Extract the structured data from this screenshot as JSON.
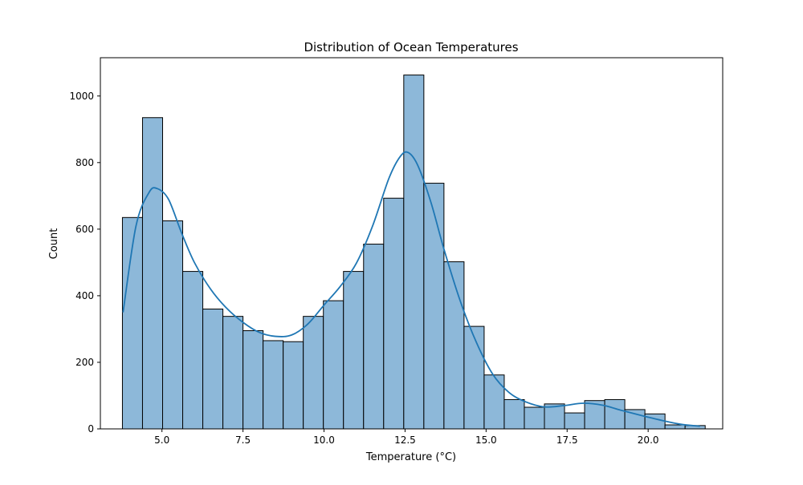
{
  "chart_data": {
    "type": "bar",
    "title": "Distribution of Ocean Temperatures",
    "xlabel": "Temperature (°C)",
    "ylabel": "Count",
    "xlim": [
      3.1,
      22.3
    ],
    "ylim": [
      0,
      1115
    ],
    "x_ticks": [
      5.0,
      7.5,
      10.0,
      12.5,
      15.0,
      17.5,
      20.0
    ],
    "x_tick_labels": [
      "5.0",
      "7.5",
      "10.0",
      "12.5",
      "15.0",
      "17.5",
      "20.0"
    ],
    "y_ticks": [
      0,
      200,
      400,
      600,
      800,
      1000
    ],
    "y_tick_labels": [
      "0",
      "200",
      "400",
      "600",
      "800",
      "1000"
    ],
    "bin_edges": [
      3.78,
      4.4,
      5.02,
      5.64,
      6.26,
      6.88,
      7.5,
      8.12,
      8.74,
      9.36,
      9.98,
      10.6,
      11.22,
      11.84,
      12.46,
      13.08,
      13.7,
      14.32,
      14.94,
      15.56,
      16.18,
      16.8,
      17.42,
      18.04,
      18.66,
      19.28,
      19.9,
      20.52,
      21.14,
      21.76
    ],
    "counts": [
      635,
      935,
      625,
      473,
      360,
      338,
      295,
      265,
      262,
      338,
      385,
      473,
      555,
      693,
      1063,
      738,
      502,
      308,
      162,
      88,
      65,
      75,
      48,
      85,
      88,
      58,
      45,
      12,
      10
    ],
    "kde": {
      "x": [
        3.8,
        4.2,
        4.6,
        4.85,
        5.2,
        5.6,
        6.0,
        6.5,
        7.0,
        7.5,
        8.0,
        8.5,
        9.0,
        9.5,
        10.0,
        10.5,
        11.0,
        11.5,
        12.0,
        12.35,
        12.6,
        12.9,
        13.3,
        13.7,
        14.2,
        14.7,
        15.2,
        15.7,
        16.2,
        16.8,
        17.4,
        18.0,
        18.6,
        19.2,
        19.8,
        20.4,
        21.0,
        21.6
      ],
      "y": [
        350,
        610,
        710,
        722,
        690,
        590,
        500,
        420,
        362,
        320,
        290,
        278,
        282,
        315,
        372,
        428,
        498,
        610,
        752,
        818,
        830,
        790,
        680,
        540,
        385,
        260,
        165,
        110,
        82,
        66,
        70,
        77,
        71,
        55,
        40,
        26,
        14,
        8
      ]
    },
    "colors": {
      "bar_fill": "#8db8d9",
      "bar_edge": "#000000",
      "kde_line": "#1f77b4"
    },
    "grid": false,
    "legend": "none"
  }
}
